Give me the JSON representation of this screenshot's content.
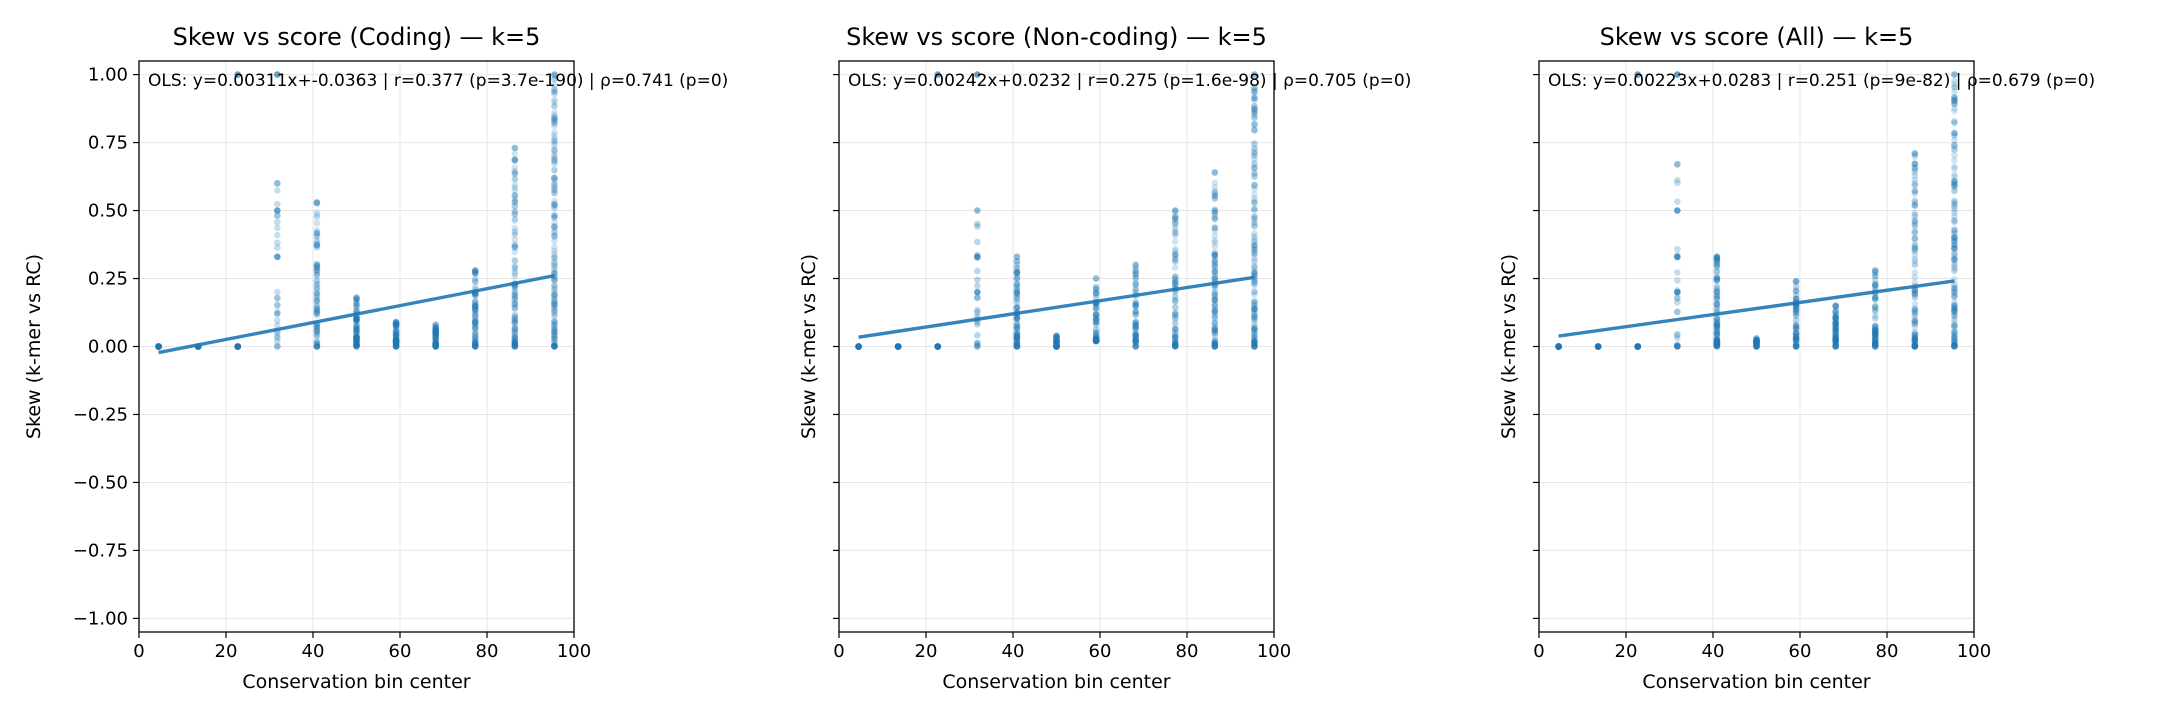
{
  "figure": {},
  "chart_data": [
    {
      "type": "scatter",
      "title": "Skew vs score (Coding) — k=5",
      "xlabel": "Conservation bin center",
      "ylabel": "Skew (k-mer vs RC)",
      "xlim": [
        0,
        100
      ],
      "ylim": [
        -1.05,
        1.05
      ],
      "xticks": [
        "0",
        "20",
        "40",
        "60",
        "80",
        "100"
      ],
      "yticks": [
        "1.00",
        "0.75",
        "0.50",
        "0.25",
        "0.00",
        "−0.25",
        "−0.50",
        "−0.75",
        "−1.00"
      ],
      "show_ytick_labels": true,
      "grid": true,
      "annotation": "OLS: y=0.00311x+-0.0363 | r=0.377 (p=3.7e-190) | ρ=0.741 (p=0)",
      "fit_line": {
        "x": [
          4.5,
          95.5
        ],
        "y": [
          -0.0223,
          0.2607
        ]
      },
      "clusters": [
        {
          "x": 4.5,
          "y_min": 0.0,
          "y_max": 0.0,
          "n": 8,
          "alpha": 0.6
        },
        {
          "x": 13.6,
          "y_min": 0.0,
          "y_max": 0.0,
          "n": 4,
          "alpha": 0.6
        },
        {
          "x": 22.7,
          "y_min": 0.0,
          "y_max": 0.0,
          "n": 4,
          "alpha": 0.6
        },
        {
          "x": 31.8,
          "y_min": 0.0,
          "y_max": 0.6,
          "n": 24,
          "alpha": 0.25
        },
        {
          "x": 40.9,
          "y_min": 0.0,
          "y_max": 0.53,
          "n": 90,
          "alpha": 0.2
        },
        {
          "x": 50.0,
          "y_min": 0.0,
          "y_max": 0.18,
          "n": 60,
          "alpha": 0.3
        },
        {
          "x": 59.1,
          "y_min": 0.0,
          "y_max": 0.09,
          "n": 40,
          "alpha": 0.35
        },
        {
          "x": 68.2,
          "y_min": 0.0,
          "y_max": 0.08,
          "n": 40,
          "alpha": 0.35
        },
        {
          "x": 77.3,
          "y_min": 0.0,
          "y_max": 0.28,
          "n": 70,
          "alpha": 0.25
        },
        {
          "x": 86.4,
          "y_min": 0.0,
          "y_max": 0.73,
          "n": 120,
          "alpha": 0.2
        },
        {
          "x": 95.5,
          "y_min": 0.0,
          "y_max": 1.0,
          "n": 160,
          "alpha": 0.2
        }
      ],
      "extra_points": [
        {
          "x": 22.7,
          "y": 1.0
        },
        {
          "x": 31.8,
          "y": 1.0
        },
        {
          "x": 31.8,
          "y": 0.5
        },
        {
          "x": 31.8,
          "y": 0.33
        }
      ]
    },
    {
      "type": "scatter",
      "title": "Skew vs score (Non-coding) — k=5",
      "xlabel": "Conservation bin center",
      "ylabel": "Skew (k-mer vs RC)",
      "xlim": [
        0,
        100
      ],
      "ylim": [
        -1.05,
        1.05
      ],
      "xticks": [
        "0",
        "20",
        "40",
        "60",
        "80",
        "100"
      ],
      "yticks": [],
      "show_ytick_labels": false,
      "grid": true,
      "annotation": "OLS: y=0.00242x+0.0232 | r=0.275 (p=1.6e-98) | ρ=0.705 (p=0)",
      "fit_line": {
        "x": [
          4.5,
          95.5
        ],
        "y": [
          0.0341,
          0.2543
        ]
      },
      "clusters": [
        {
          "x": 4.5,
          "y_min": 0.0,
          "y_max": 0.0,
          "n": 6,
          "alpha": 0.6
        },
        {
          "x": 13.6,
          "y_min": 0.0,
          "y_max": 0.0,
          "n": 4,
          "alpha": 0.6
        },
        {
          "x": 22.7,
          "y_min": 0.0,
          "y_max": 0.0,
          "n": 4,
          "alpha": 0.6
        },
        {
          "x": 31.8,
          "y_min": 0.0,
          "y_max": 0.5,
          "n": 20,
          "alpha": 0.3
        },
        {
          "x": 40.9,
          "y_min": 0.0,
          "y_max": 0.33,
          "n": 80,
          "alpha": 0.25
        },
        {
          "x": 50.0,
          "y_min": 0.0,
          "y_max": 0.04,
          "n": 20,
          "alpha": 0.5
        },
        {
          "x": 59.1,
          "y_min": 0.02,
          "y_max": 0.25,
          "n": 50,
          "alpha": 0.3
        },
        {
          "x": 68.2,
          "y_min": 0.0,
          "y_max": 0.3,
          "n": 60,
          "alpha": 0.25
        },
        {
          "x": 77.3,
          "y_min": 0.0,
          "y_max": 0.5,
          "n": 90,
          "alpha": 0.2
        },
        {
          "x": 86.4,
          "y_min": 0.0,
          "y_max": 0.64,
          "n": 120,
          "alpha": 0.2
        },
        {
          "x": 95.5,
          "y_min": 0.0,
          "y_max": 1.0,
          "n": 160,
          "alpha": 0.2
        }
      ],
      "extra_points": [
        {
          "x": 22.7,
          "y": 1.0
        },
        {
          "x": 31.8,
          "y": 1.0
        },
        {
          "x": 31.8,
          "y": 0.33
        },
        {
          "x": 31.8,
          "y": 0.2
        }
      ]
    },
    {
      "type": "scatter",
      "title": "Skew vs score (All) — k=5",
      "xlabel": "Conservation bin center",
      "ylabel": "Skew (k-mer vs RC)",
      "xlim": [
        0,
        100
      ],
      "ylim": [
        -1.05,
        1.05
      ],
      "xticks": [
        "0",
        "20",
        "40",
        "60",
        "80",
        "100"
      ],
      "yticks": [],
      "show_ytick_labels": false,
      "grid": true,
      "annotation": "OLS: y=0.00223x+0.0283 | r=0.251 (p=9e-82) | ρ=0.679 (p=0)",
      "fit_line": {
        "x": [
          4.5,
          95.5
        ],
        "y": [
          0.0383,
          0.2413
        ]
      },
      "clusters": [
        {
          "x": 4.5,
          "y_min": 0.0,
          "y_max": 0.0,
          "n": 8,
          "alpha": 0.6
        },
        {
          "x": 13.6,
          "y_min": 0.0,
          "y_max": 0.0,
          "n": 4,
          "alpha": 0.6
        },
        {
          "x": 22.7,
          "y_min": 0.0,
          "y_max": 0.0,
          "n": 4,
          "alpha": 0.6
        },
        {
          "x": 31.8,
          "y_min": 0.0,
          "y_max": 0.67,
          "n": 24,
          "alpha": 0.25
        },
        {
          "x": 40.9,
          "y_min": 0.0,
          "y_max": 0.33,
          "n": 90,
          "alpha": 0.25
        },
        {
          "x": 50.0,
          "y_min": 0.0,
          "y_max": 0.03,
          "n": 20,
          "alpha": 0.5
        },
        {
          "x": 59.1,
          "y_min": 0.0,
          "y_max": 0.24,
          "n": 50,
          "alpha": 0.3
        },
        {
          "x": 68.2,
          "y_min": 0.0,
          "y_max": 0.15,
          "n": 50,
          "alpha": 0.3
        },
        {
          "x": 77.3,
          "y_min": 0.0,
          "y_max": 0.28,
          "n": 70,
          "alpha": 0.25
        },
        {
          "x": 86.4,
          "y_min": 0.0,
          "y_max": 0.71,
          "n": 120,
          "alpha": 0.2
        },
        {
          "x": 95.5,
          "y_min": 0.0,
          "y_max": 1.0,
          "n": 160,
          "alpha": 0.2
        }
      ],
      "extra_points": [
        {
          "x": 22.7,
          "y": 1.0
        },
        {
          "x": 31.8,
          "y": 1.0
        },
        {
          "x": 31.8,
          "y": 0.5
        },
        {
          "x": 31.8,
          "y": 0.33
        },
        {
          "x": 31.8,
          "y": 0.2
        }
      ]
    }
  ]
}
